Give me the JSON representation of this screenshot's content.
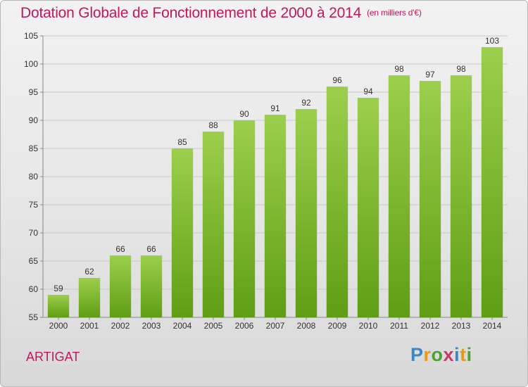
{
  "header": {
    "title": "Dotation Globale de Fonctionnement de 2000 à 2014",
    "unit_note": "(en milliers d'€)"
  },
  "commune_name": "ARTIGAT",
  "logo_text": "Proxiti",
  "colors": {
    "title": "#c2185b",
    "bar_top": "#9ccf4c",
    "bar_bottom": "#5f9e14",
    "grid": "#c8c8c8"
  },
  "chart_data": {
    "type": "bar",
    "categories": [
      "2000",
      "2001",
      "2002",
      "2003",
      "2004",
      "2005",
      "2006",
      "2007",
      "2008",
      "2009",
      "2010",
      "2011",
      "2012",
      "2013",
      "2014"
    ],
    "values": [
      59,
      62,
      66,
      66,
      85,
      88,
      90,
      91,
      92,
      96,
      94,
      98,
      97,
      98,
      103
    ],
    "title": "Dotation Globale de Fonctionnement de 2000 à 2014",
    "subtitle": "(en milliers d'€)",
    "xlabel": "",
    "ylabel": "",
    "ylim": [
      55,
      105
    ],
    "yticks": [
      55,
      60,
      65,
      70,
      75,
      80,
      85,
      90,
      95,
      100,
      105
    ],
    "grid": true,
    "data_labels": true
  }
}
